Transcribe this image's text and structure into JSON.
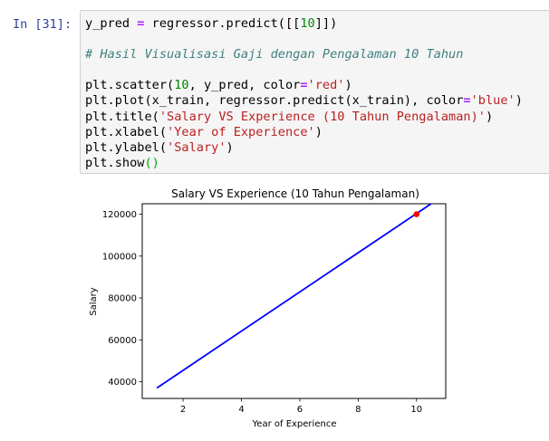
{
  "cell": {
    "prompt": "In [31]:",
    "lines": [
      {
        "parts": [
          {
            "t": "y_pred ",
            "c": ""
          },
          {
            "t": "=",
            "c": "op"
          },
          {
            "t": " regressor.predict([[",
            "c": ""
          },
          {
            "t": "10",
            "c": "num"
          },
          {
            "t": "]])",
            "c": ""
          }
        ]
      },
      {
        "blank": true
      },
      {
        "parts": [
          {
            "t": "# Hasil Visualisasi Gaji dengan Pengalaman 10 Tahun",
            "c": "cm"
          }
        ]
      },
      {
        "blank": true
      },
      {
        "parts": [
          {
            "t": "plt.scatter(",
            "c": ""
          },
          {
            "t": "10",
            "c": "num"
          },
          {
            "t": ", y_pred, color",
            "c": ""
          },
          {
            "t": "=",
            "c": "op"
          },
          {
            "t": "'red'",
            "c": "str"
          },
          {
            "t": ")",
            "c": ""
          }
        ]
      },
      {
        "parts": [
          {
            "t": "plt.plot(x_train, regressor.predict(x_train), color",
            "c": ""
          },
          {
            "t": "=",
            "c": "op"
          },
          {
            "t": "'blue'",
            "c": "str"
          },
          {
            "t": ")",
            "c": ""
          }
        ]
      },
      {
        "parts": [
          {
            "t": "plt.title(",
            "c": ""
          },
          {
            "t": "'Salary VS Experience (10 Tahun Pengalaman)'",
            "c": "str"
          },
          {
            "t": ")",
            "c": ""
          }
        ]
      },
      {
        "parts": [
          {
            "t": "plt.xlabel(",
            "c": ""
          },
          {
            "t": "'Year of Experience'",
            "c": "str"
          },
          {
            "t": ")",
            "c": ""
          }
        ]
      },
      {
        "parts": [
          {
            "t": "plt.ylabel(",
            "c": ""
          },
          {
            "t": "'Salary'",
            "c": "str"
          },
          {
            "t": ")",
            "c": ""
          }
        ]
      },
      {
        "parts": [
          {
            "t": "plt.show",
            "c": ""
          },
          {
            "t": "()",
            "c": "par"
          }
        ]
      }
    ]
  },
  "chart_data": {
    "type": "line",
    "title": "Salary VS Experience (10 Tahun Pengalaman)",
    "xlabel": "Year of Experience",
    "ylabel": "Salary",
    "xlim": [
      0.6,
      11.0
    ],
    "ylim": [
      32000,
      125000
    ],
    "xticks": [
      2,
      4,
      6,
      8,
      10
    ],
    "yticks": [
      40000,
      60000,
      80000,
      100000,
      120000
    ],
    "grid": false,
    "series": [
      {
        "kind": "line",
        "color": "#0000ff",
        "x": [
          1.1,
          10.5
        ],
        "y": [
          37000,
          125000
        ]
      },
      {
        "kind": "scatter",
        "color": "#ff0000",
        "x": [
          10
        ],
        "y": [
          120000
        ]
      }
    ]
  }
}
